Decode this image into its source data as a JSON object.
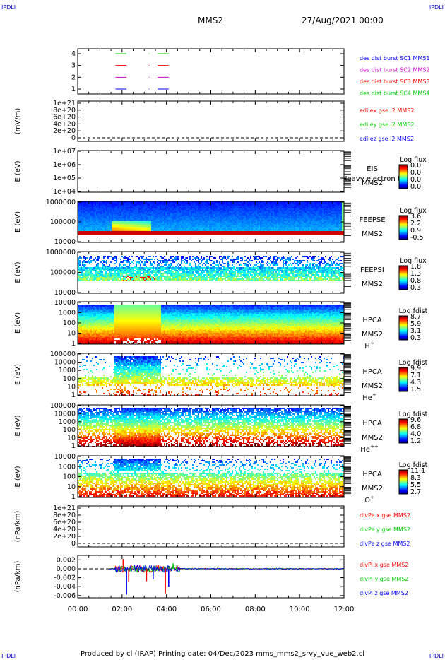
{
  "corner_label": "IPDLI",
  "header": {
    "spacecraft": "MMS2",
    "datetime": "27/Aug/2021 00:00"
  },
  "footer": {
    "text": "Produced by cl (IRAP)    Printing date: 04/Dec/2023    mms_mms2_srvy_vue_web2.cl"
  },
  "x_ticks": [
    "00:00",
    "02:00",
    "04:00",
    "06:00",
    "08:00",
    "10:00",
    "12:00"
  ],
  "chart_data": [
    {
      "id": "burst",
      "type": "line",
      "yticks": [
        "4",
        "3",
        "2",
        "1"
      ],
      "legend": [
        {
          "text": "des dist burst SC1 MMS1",
          "color": "#0000ff"
        },
        {
          "text": "des dist burst SC2 MMS2",
          "color": "#cc00cc"
        },
        {
          "text": "des dist burst SC3 MMS3",
          "color": "#ff0000"
        },
        {
          "text": "des dist burst SC4 MMS4",
          "color": "#00cc00"
        }
      ],
      "segments": [
        {
          "sc": 4,
          "t": [
            [
              1.7,
              2.2
            ],
            [
              3.6,
              4.1
            ]
          ],
          "color": "#00cc00"
        },
        {
          "sc": 3,
          "t": [
            [
              1.7,
              2.2
            ],
            [
              3.6,
              4.1
            ]
          ],
          "color": "#ff0000"
        },
        {
          "sc": 2,
          "t": [
            [
              1.7,
              2.2
            ],
            [
              3.6,
              4.1
            ]
          ],
          "color": "#cc00cc"
        },
        {
          "sc": 1,
          "t": [
            [
              1.7,
              2.2
            ],
            [
              3.6,
              4.1
            ]
          ],
          "color": "#0000ff"
        }
      ]
    },
    {
      "id": "edi",
      "type": "line",
      "ylabel": "(mV/m)",
      "yticks": [
        "1e+21",
        "8e+20",
        "6e+20",
        "4e+20",
        "2e+20",
        "0"
      ],
      "legend": [
        {
          "text": "edi ex gse l2 MMS2",
          "color": "#ff0000"
        },
        {
          "text": "edi ey gse l2 MMS2",
          "color": "#00cc00"
        },
        {
          "text": "edi ez gse l2 MMS2",
          "color": "#0000ff"
        }
      ]
    },
    {
      "id": "eis",
      "type": "heatmap",
      "ylabel": "E (eV)",
      "yticks": [
        "1e+07",
        "1e+06",
        "1e+05",
        "1e+04"
      ],
      "side": [
        "EIS",
        "MMS2"
      ],
      "overlay": "Heavy electron to",
      "cbar": {
        "title": "Log flux",
        "ticks": [
          "0.0",
          "0.0",
          "0.0",
          "0.0"
        ]
      }
    },
    {
      "id": "feepse",
      "type": "heatmap",
      "ylabel": "E (eV)",
      "yticks": [
        "1000000",
        "100000",
        "10000"
      ],
      "side": [
        "FEEPSE",
        "MMS2"
      ],
      "cbar": {
        "title": "Log flux",
        "ticks": [
          "3.6",
          "2.2",
          "0.9",
          "-0.5"
        ]
      }
    },
    {
      "id": "feepsi",
      "type": "heatmap",
      "ylabel": "E (eV)",
      "yticks": [
        "1000000",
        "100000",
        "10000"
      ],
      "side": [
        "FEEPSI",
        "MMS2"
      ],
      "cbar": {
        "title": "Log flux",
        "ticks": [
          "1.8",
          "1.3",
          "0.8",
          "0.3"
        ]
      }
    },
    {
      "id": "hpca_h",
      "type": "heatmap",
      "ylabel": "E (eV)",
      "yticks": [
        "10000",
        "1000",
        "100",
        "10",
        "1"
      ],
      "side": [
        "HPCA",
        "MMS2"
      ],
      "species": "H",
      "species_sup": "+",
      "cbar": {
        "title": "Log fdist",
        "ticks": [
          "8.7",
          "5.9",
          "3.1",
          "0.3"
        ]
      }
    },
    {
      "id": "hpca_he1",
      "type": "heatmap",
      "ylabel": "E (eV)",
      "yticks": [
        "100000",
        "10000",
        "1000",
        "100",
        "10",
        "1"
      ],
      "side": [
        "HPCA",
        "MMS2"
      ],
      "species": "He",
      "species_sup": "+",
      "cbar": {
        "title": "Log fdist",
        "ticks": [
          "9.9",
          "7.1",
          "4.3",
          "1.5"
        ]
      }
    },
    {
      "id": "hpca_he2",
      "type": "heatmap",
      "ylabel": "E (eV)",
      "yticks": [
        "100000",
        "10000",
        "1000",
        "100",
        "10",
        "1"
      ],
      "side": [
        "HPCA",
        "MMS2"
      ],
      "species": "He",
      "species_sup": "++",
      "cbar": {
        "title": "Log fdist",
        "ticks": [
          "9.6",
          "6.8",
          "4.0",
          "1.2"
        ]
      }
    },
    {
      "id": "hpca_o",
      "type": "heatmap",
      "ylabel": "E (eV)",
      "yticks": [
        "10000",
        "1000",
        "100",
        "10",
        "1"
      ],
      "side": [
        "HPCA",
        "MMS2"
      ],
      "species": "O",
      "species_sup": "+",
      "cbar": {
        "title": "Log fdist",
        "ticks": [
          "11.1",
          "8.3",
          "5.5",
          "2.7"
        ]
      }
    },
    {
      "id": "divpe",
      "type": "line",
      "ylabel": "(nPa/km)",
      "yticks": [
        "1e+21",
        "8e+20",
        "6e+20",
        "4e+20",
        "2e+20",
        "0"
      ],
      "legend": [
        {
          "text": "divPe x gse MMS2",
          "color": "#ff0000"
        },
        {
          "text": "divPe y gse MMS2",
          "color": "#00cc00"
        },
        {
          "text": "divPe z gse MMS2",
          "color": "#0000ff"
        }
      ]
    },
    {
      "id": "divpi",
      "type": "line",
      "ylabel": "(nPa/km)",
      "yticks": [
        "0.002",
        "0.000",
        "-0.002",
        "-0.004",
        "-0.006"
      ],
      "ylim": [
        -0.0065,
        0.003
      ],
      "legend": [
        {
          "text": "divPi x gse MMS2",
          "color": "#ff0000"
        },
        {
          "text": "divPi y gse MMS2",
          "color": "#00cc00"
        },
        {
          "text": "divPi z gse MMS2",
          "color": "#0000ff"
        }
      ],
      "spikes": [
        {
          "t": 2.05,
          "v": 0.0022,
          "color": "#ff0000"
        },
        {
          "t": 2.2,
          "v": -0.0058,
          "color": "#0000ff"
        },
        {
          "t": 2.3,
          "v": -0.003,
          "color": "#ff0000"
        },
        {
          "t": 3.1,
          "v": -0.0028,
          "color": "#ff0000"
        },
        {
          "t": 3.4,
          "v": -0.0024,
          "color": "#0000ff"
        },
        {
          "t": 3.95,
          "v": -0.0055,
          "color": "#ff0000"
        },
        {
          "t": 4.1,
          "v": -0.004,
          "color": "#0000ff"
        },
        {
          "t": 4.3,
          "v": 0.0012,
          "color": "#00cc00"
        }
      ]
    }
  ]
}
